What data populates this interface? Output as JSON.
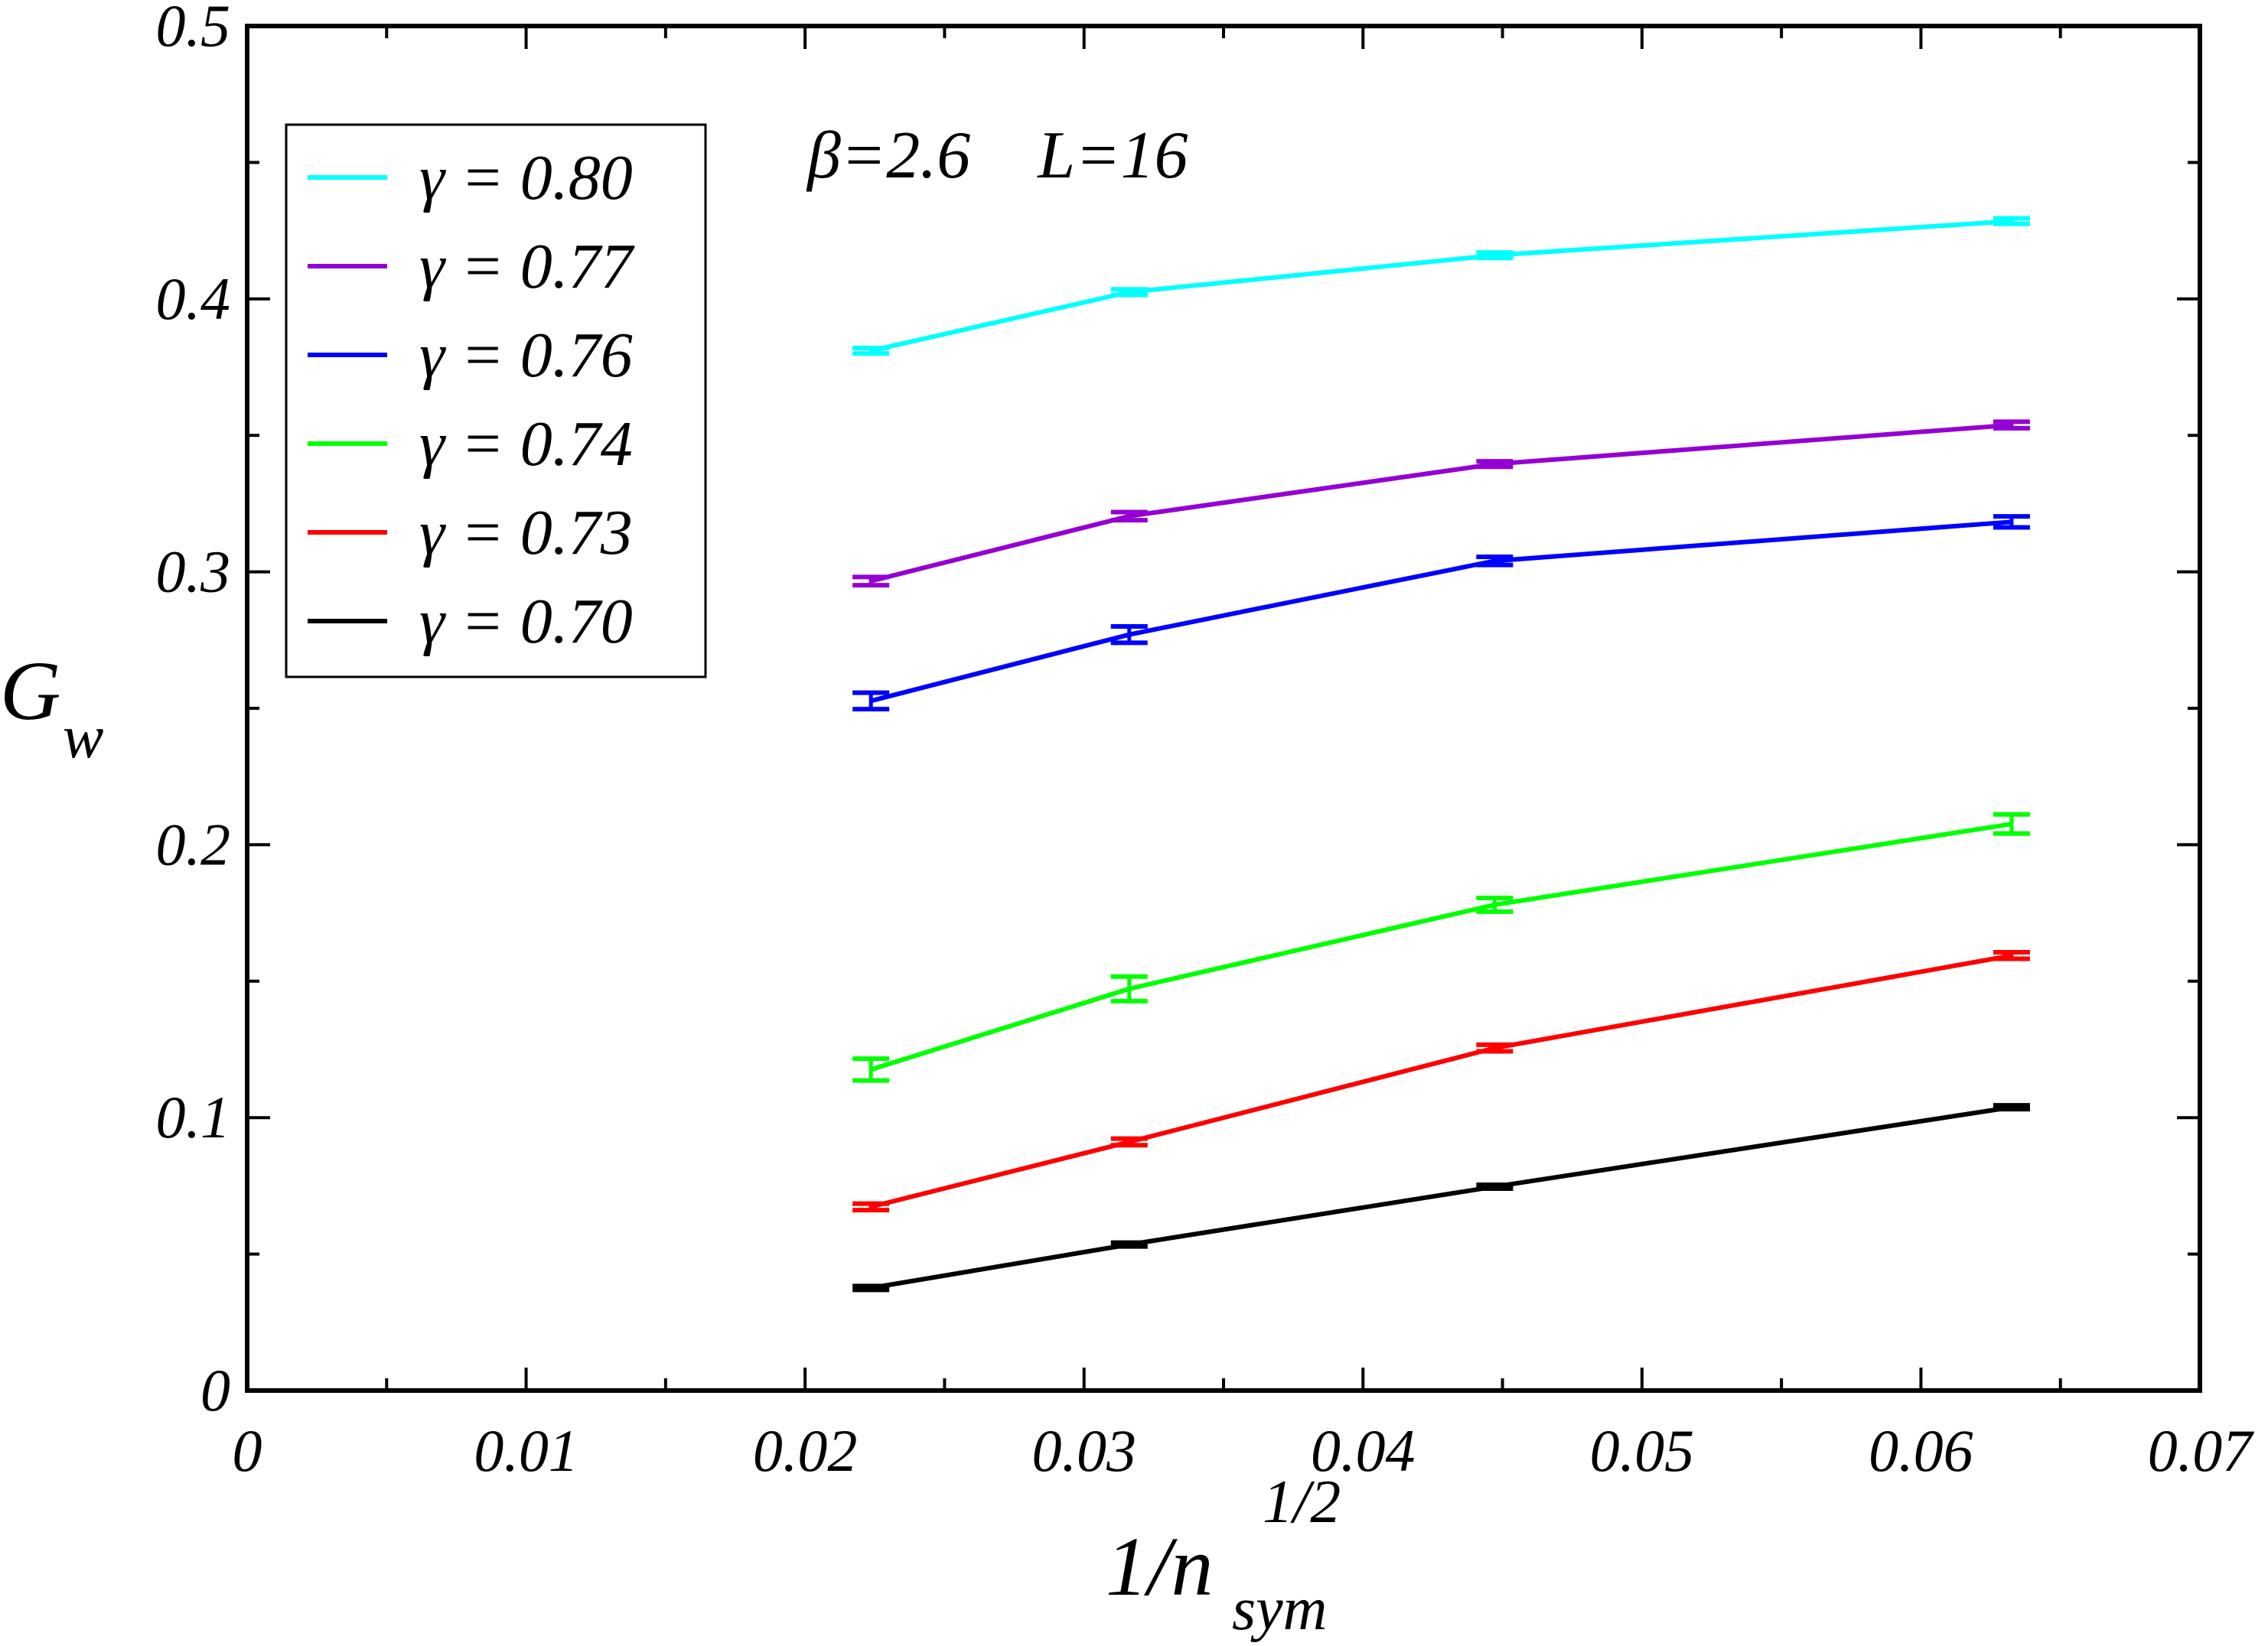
{
  "chart_data": {
    "type": "line",
    "annotation": "β=2.6    L=16",
    "xlabel": "1/n",
    "xlabel_sup": "1/2",
    "xlabel_sub": "sym",
    "ylabel": "G",
    "ylabel_sub": "w",
    "xlim": [
      0,
      0.07
    ],
    "ylim": [
      0,
      0.5
    ],
    "xticks": [
      0,
      0.01,
      0.02,
      0.03,
      0.04,
      0.05,
      0.06,
      0.07
    ],
    "xtick_labels": [
      "0",
      "0.01",
      "0.02",
      "0.03",
      "0.04",
      "0.05",
      "0.06",
      "0.07"
    ],
    "yticks": [
      0,
      0.1,
      0.2,
      0.3,
      0.4,
      0.5
    ],
    "ytick_labels": [
      "0",
      "0.1",
      "0.2",
      "0.3",
      "0.4",
      "0.5"
    ],
    "grid": false,
    "legend_position": "top-left",
    "x": [
      0.02236,
      0.03162,
      0.04472,
      0.06325
    ],
    "series": [
      {
        "name": "γ = 0.80",
        "color": "#00ffff",
        "values": [
          0.381,
          0.4025,
          0.416,
          0.4285
        ],
        "errors": [
          0.001,
          0.001,
          0.001,
          0.001
        ]
      },
      {
        "name": "γ = 0.77",
        "color": "#9400d3",
        "values": [
          0.2966,
          0.3204,
          0.3395,
          0.3538
        ],
        "errors": [
          0.0015,
          0.0015,
          0.001,
          0.0012
        ]
      },
      {
        "name": "γ = 0.76",
        "color": "#0000ff",
        "values": [
          0.2527,
          0.277,
          0.304,
          0.3183
        ],
        "errors": [
          0.003,
          0.003,
          0.0015,
          0.002
        ]
      },
      {
        "name": "γ = 0.74",
        "color": "#00ff00",
        "values": [
          0.1176,
          0.1472,
          0.178,
          0.2076
        ],
        "errors": [
          0.004,
          0.0045,
          0.0025,
          0.0035
        ]
      },
      {
        "name": "γ = 0.73",
        "color": "#ff0000",
        "values": [
          0.0673,
          0.0911,
          0.1255,
          0.1594
        ],
        "errors": [
          0.0012,
          0.0012,
          0.0012,
          0.0012
        ]
      },
      {
        "name": "γ = 0.70",
        "color": "#000000",
        "values": [
          0.0376,
          0.0535,
          0.0747,
          0.1038
        ],
        "errors": [
          0.0007,
          0.0007,
          0.0007,
          0.0007
        ]
      }
    ]
  }
}
